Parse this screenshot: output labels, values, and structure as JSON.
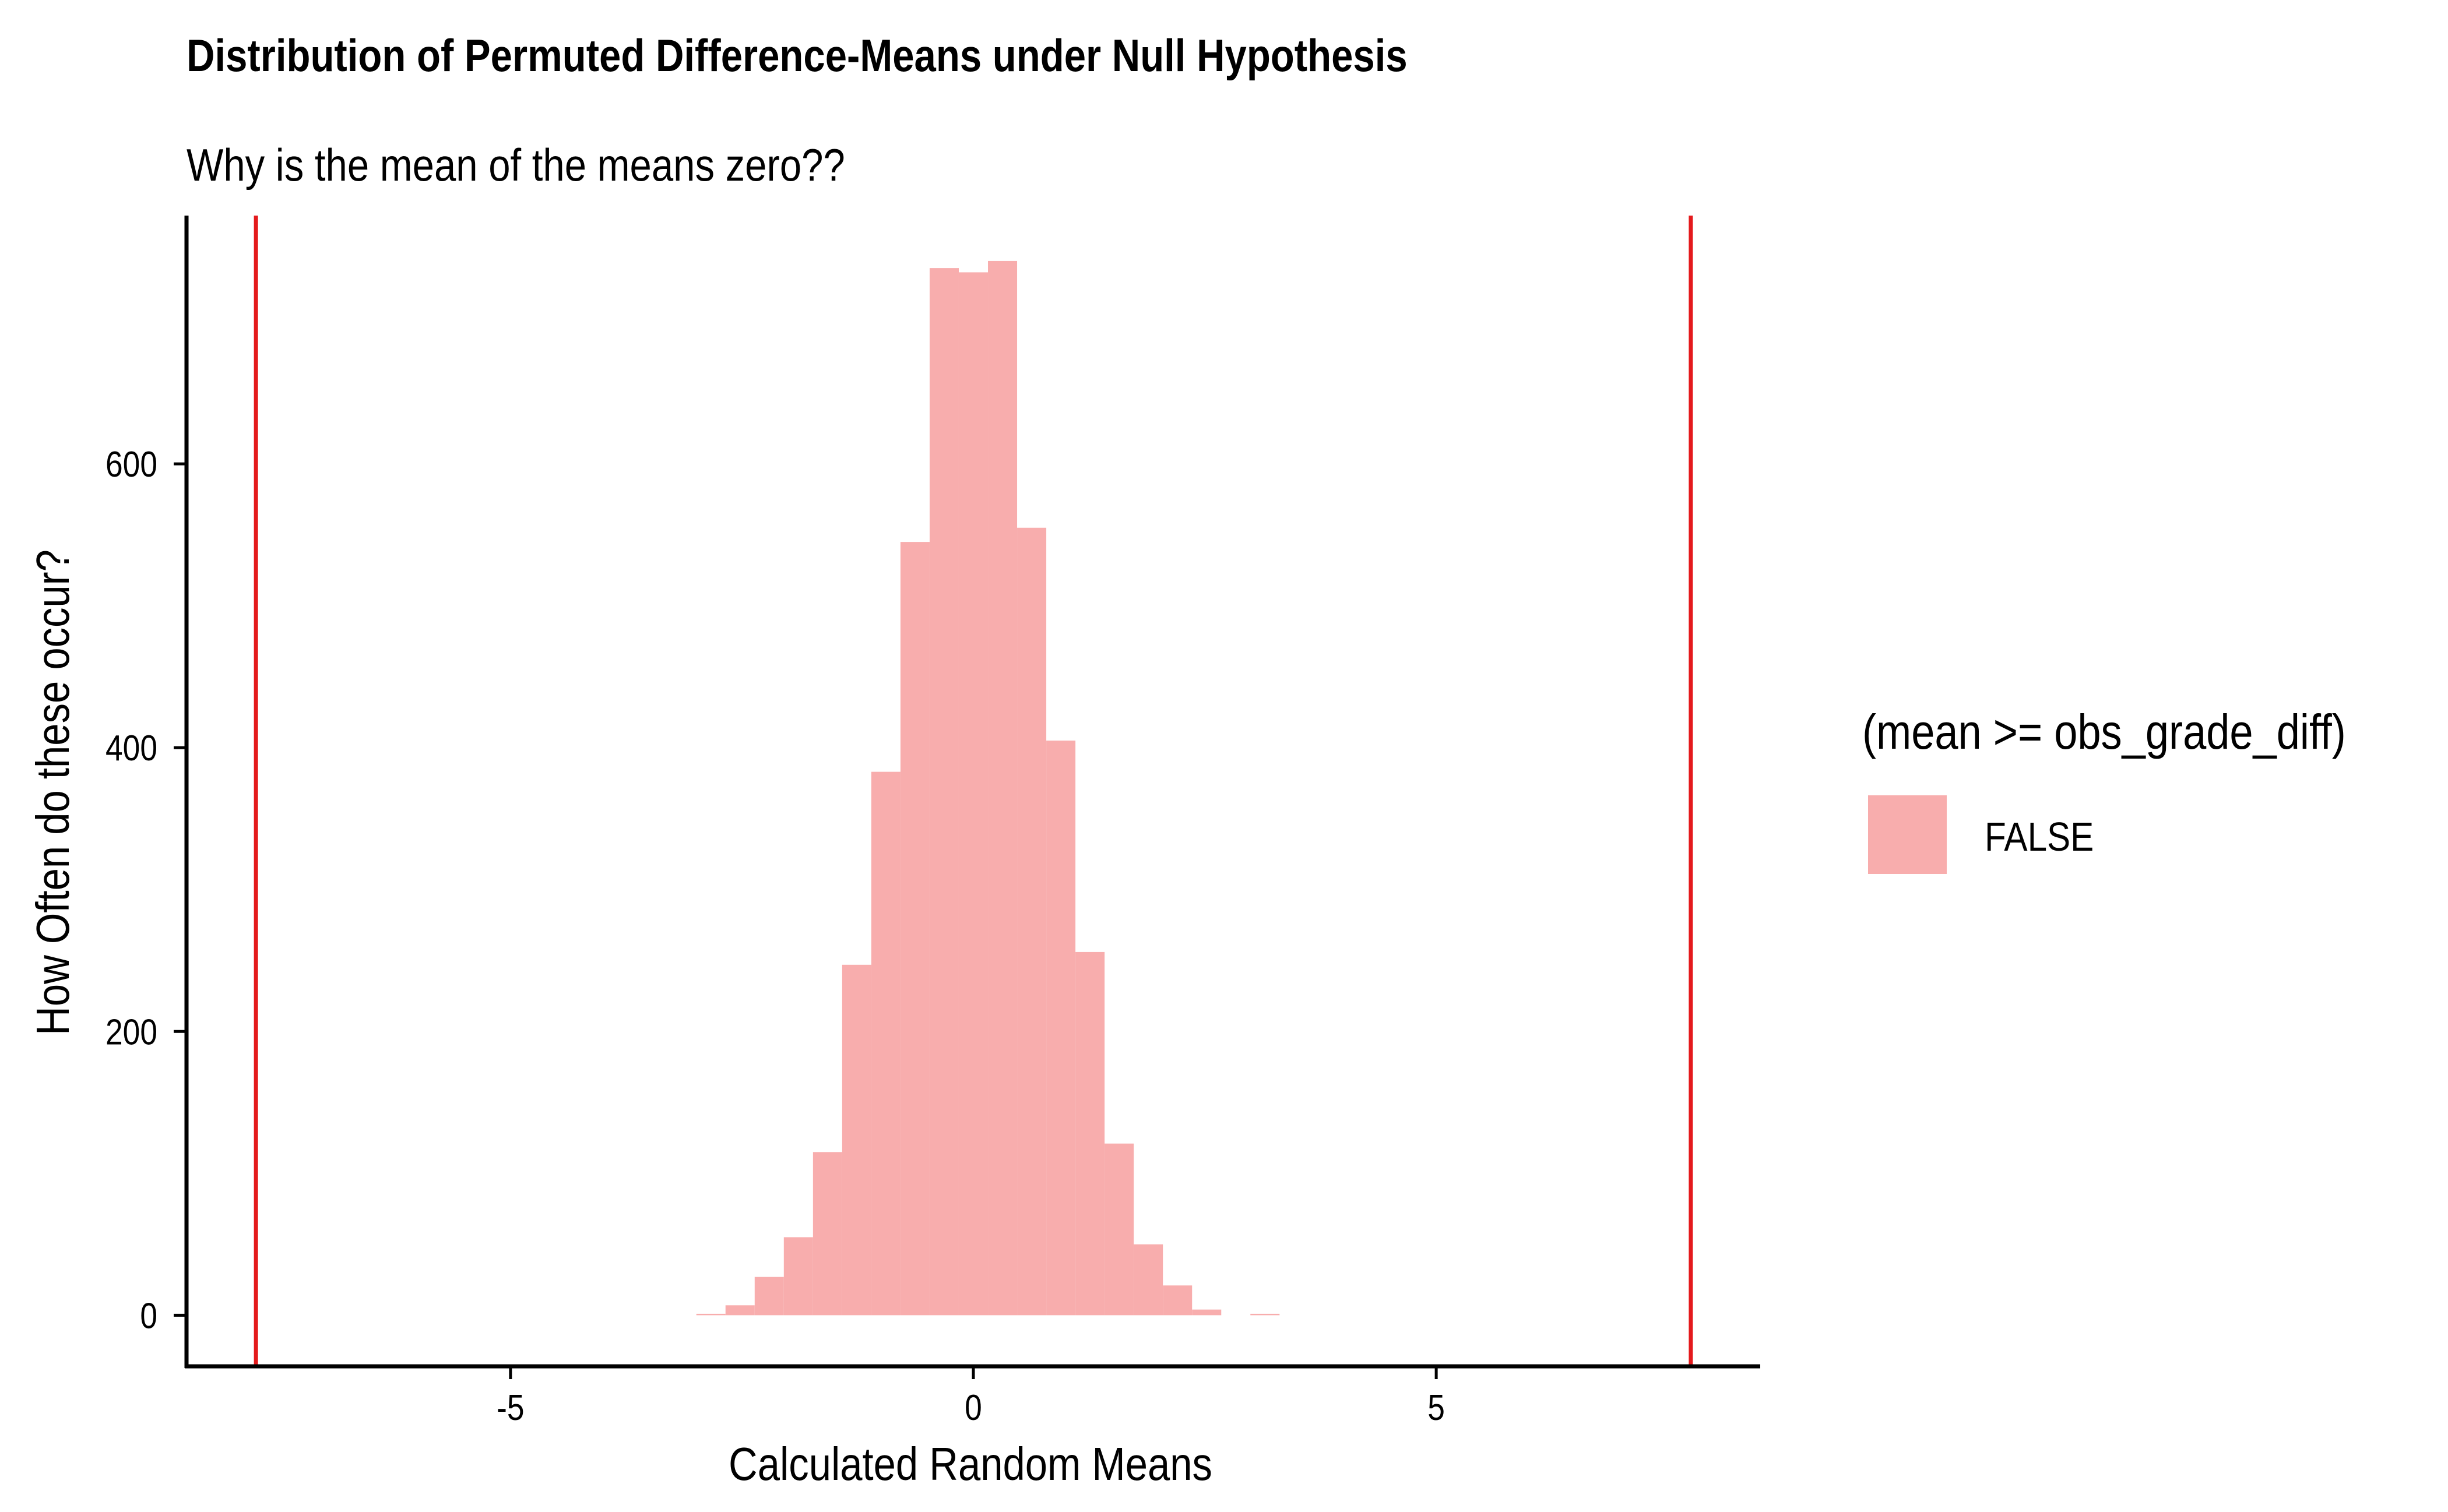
{
  "chart_data": {
    "type": "bar",
    "title": "Distribution of Permuted Difference-Means under Null Hypothesis",
    "subtitle": "Why is the mean of the means zero??",
    "xlabel": "Calculated Random Means",
    "ylabel": "How Often do these occur?",
    "xlim": [
      -8.5,
      8.5
    ],
    "ylim": [
      -36,
      775
    ],
    "xticks": [
      -5,
      0,
      5
    ],
    "xtick_labels": [
      "-5",
      "0",
      "5"
    ],
    "yticks": [
      0,
      200,
      400,
      600
    ],
    "ytick_labels": [
      "0",
      "200",
      "400",
      "600"
    ],
    "grid": false,
    "legend": {
      "title": "(mean >= obs_grade_diff)",
      "position": "right",
      "entries": [
        {
          "label": "FALSE",
          "color": "#F8ADAD"
        }
      ]
    },
    "bin_width": 0.315,
    "bin_centers": [
      -2.835,
      -2.52,
      -2.205,
      -1.89,
      -1.575,
      -1.26,
      -0.945,
      -0.63,
      -0.315,
      0.0,
      0.315,
      0.63,
      0.945,
      1.26,
      1.575,
      1.89,
      2.205,
      2.52,
      2.835,
      3.15
    ],
    "series": [
      {
        "name": "FALSE",
        "color": "#F8ADAD",
        "values": [
          1,
          7,
          27,
          55,
          115,
          247,
          383,
          545,
          738,
          735,
          743,
          555,
          405,
          256,
          121,
          50,
          21,
          4,
          0,
          1
        ]
      }
    ],
    "vlines": [
      {
        "x": -7.75,
        "color": "#E41A1C"
      },
      {
        "x": 7.75,
        "color": "#E41A1C"
      }
    ]
  }
}
